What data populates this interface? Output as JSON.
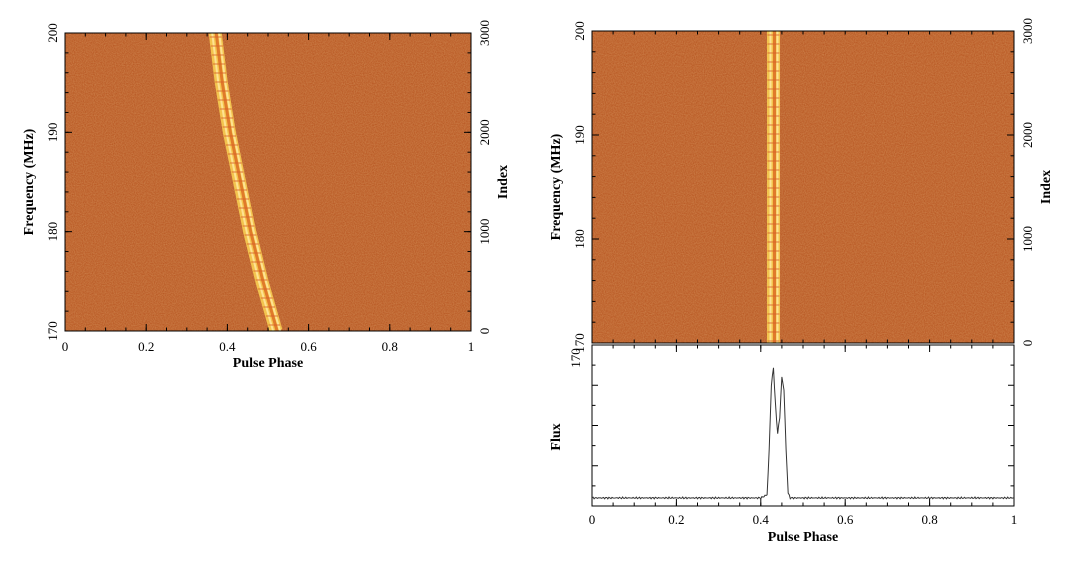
{
  "chart_data": [
    {
      "type": "heatmap",
      "title": "",
      "xlabel": "Pulse Phase",
      "ylabel": "Frequency (MHz)",
      "ylabel_right": "Index",
      "xlim": [
        0,
        1
      ],
      "ylim": [
        170,
        200
      ],
      "ylim_right": [
        0,
        3000
      ],
      "x_ticks": [
        "0",
        "0.2",
        "0.4",
        "0.6",
        "0.8",
        "1"
      ],
      "y_ticks": [
        "170",
        "180",
        "190",
        "200"
      ],
      "y_ticks_right": [
        "0",
        "1000",
        "2000",
        "3000"
      ],
      "pulse_track": {
        "description_points": [
          {
            "freq": 200,
            "phase": 0.37
          },
          {
            "freq": 195,
            "phase": 0.385
          },
          {
            "freq": 190,
            "phase": 0.405
          },
          {
            "freq": 185,
            "phase": 0.43
          },
          {
            "freq": 180,
            "phase": 0.455
          },
          {
            "freq": 175,
            "phase": 0.485
          },
          {
            "freq": 170,
            "phase": 0.52
          }
        ]
      },
      "colors": {
        "background": "#b5501c",
        "pulse": "#f6c850",
        "pulse_core": "#ffe79a"
      }
    },
    {
      "type": "heatmap",
      "title": "",
      "xlabel": "",
      "ylabel": "Frequency (MHz)",
      "ylabel_right": "Index",
      "xlim": [
        0,
        1
      ],
      "ylim": [
        170,
        200
      ],
      "ylim_right": [
        0,
        3000
      ],
      "x_ticks": [],
      "y_ticks": [
        "170",
        "180",
        "190",
        "200"
      ],
      "y_ticks_right": [
        "0",
        "1000",
        "2000",
        "3000"
      ],
      "pulse_track": {
        "description_points": [
          {
            "freq": 200,
            "phase": 0.43
          },
          {
            "freq": 170,
            "phase": 0.43
          }
        ]
      },
      "colors": {
        "background": "#b5501c",
        "pulse": "#f6c850",
        "pulse_core": "#ffe79a"
      }
    },
    {
      "type": "line",
      "title": "",
      "xlabel": "Pulse Phase",
      "ylabel": "Flux",
      "xlim": [
        0,
        1
      ],
      "ylim": [
        0,
        1
      ],
      "x_ticks": [
        "0",
        "0.2",
        "0.4",
        "0.6",
        "0.8",
        "1"
      ],
      "y_ticks_top_label": "170",
      "series": [
        {
          "points": [
            [
              0.0,
              0.05
            ],
            [
              0.4,
              0.05
            ],
            [
              0.415,
              0.07
            ],
            [
              0.42,
              0.35
            ],
            [
              0.425,
              0.75
            ],
            [
              0.43,
              0.86
            ],
            [
              0.435,
              0.62
            ],
            [
              0.44,
              0.45
            ],
            [
              0.445,
              0.55
            ],
            [
              0.45,
              0.8
            ],
            [
              0.455,
              0.72
            ],
            [
              0.46,
              0.35
            ],
            [
              0.465,
              0.08
            ],
            [
              0.47,
              0.05
            ],
            [
              1.0,
              0.05
            ]
          ]
        }
      ]
    }
  ]
}
